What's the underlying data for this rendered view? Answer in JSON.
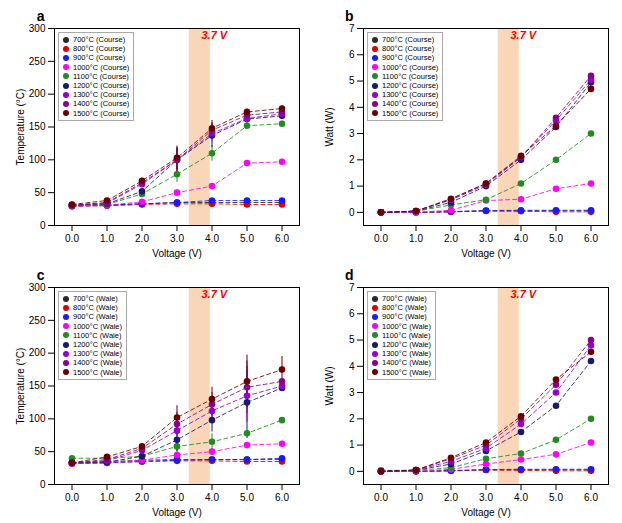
{
  "chart_data": [
    {
      "type": "line",
      "title": "a",
      "xlabel": "Voltage (V)",
      "ylabel": "Temperature (°C)",
      "x": [
        0,
        1,
        2,
        3,
        4,
        5,
        6
      ],
      "xlim": [
        -0.5,
        6.5
      ],
      "xticks": [
        0,
        1,
        2,
        3,
        4,
        5,
        6
      ],
      "ylim": [
        0,
        300
      ],
      "yticks": [
        0,
        50,
        100,
        150,
        200,
        250,
        300
      ],
      "grid": false,
      "legend": "upper left",
      "marker": "circle",
      "line_style": "dashed",
      "annotations": [
        {
          "text": "3.7 V",
          "color": "red"
        }
      ],
      "shade": {
        "x": [
          3.35,
          3.95
        ],
        "color": "#f4c090"
      },
      "series": [
        {
          "name": "700°C (Course)",
          "color": "#2a2a2a",
          "values": [
            30,
            31,
            33,
            35,
            35,
            35,
            35
          ],
          "errors": [
            1,
            1,
            1,
            1,
            1,
            1,
            1
          ]
        },
        {
          "name": "800°C (Course)",
          "color": "#e00000",
          "values": [
            29,
            30,
            32,
            33,
            33,
            32,
            32
          ],
          "errors": [
            1,
            1,
            1,
            1,
            1,
            1,
            1
          ]
        },
        {
          "name": "900°C (Course)",
          "color": "#1a1aff",
          "values": [
            30,
            31,
            33,
            35,
            38,
            38,
            38
          ],
          "errors": [
            1,
            1,
            1,
            1,
            1,
            1,
            1
          ]
        },
        {
          "name": "1000°C (Course)",
          "color": "#ff00ff",
          "values": [
            30,
            31,
            36,
            50,
            60,
            95,
            97
          ],
          "errors": [
            1,
            1,
            2,
            4,
            4,
            4,
            4
          ]
        },
        {
          "name": "1100°C (Course)",
          "color": "#228B22",
          "values": [
            30,
            32,
            48,
            78,
            110,
            152,
            155
          ],
          "errors": [
            1,
            1,
            4,
            12,
            12,
            4,
            4
          ]
        },
        {
          "name": "1200°C (Course)",
          "color": "#191970",
          "values": [
            31,
            33,
            52,
            100,
            137,
            162,
            167
          ],
          "errors": [
            1,
            1,
            4,
            18,
            18,
            4,
            4
          ]
        },
        {
          "name": "1300°C (Course)",
          "color": "#9400D3",
          "values": [
            31,
            34,
            63,
            100,
            140,
            163,
            170
          ],
          "errors": [
            1,
            1,
            4,
            18,
            12,
            4,
            4
          ]
        },
        {
          "name": "1400°C (Course)",
          "color": "#8B008B",
          "values": [
            31,
            35,
            65,
            100,
            145,
            168,
            173
          ],
          "errors": [
            1,
            1,
            4,
            18,
            12,
            4,
            4
          ]
        },
        {
          "name": "1500°C (Course)",
          "color": "#6B0000",
          "values": [
            32,
            38,
            68,
            103,
            148,
            173,
            178
          ],
          "errors": [
            1,
            1,
            4,
            18,
            12,
            4,
            4
          ]
        }
      ]
    },
    {
      "type": "line",
      "title": "b",
      "xlabel": "Voltage (V)",
      "ylabel": "Watt (W)",
      "x": [
        0,
        1,
        2,
        3,
        4,
        5,
        6
      ],
      "xlim": [
        -0.5,
        6.5
      ],
      "xticks": [
        0,
        1,
        2,
        3,
        4,
        5,
        6
      ],
      "ylim": [
        -0.5,
        7
      ],
      "yticks": [
        0,
        1,
        2,
        3,
        4,
        5,
        6,
        7
      ],
      "grid": false,
      "legend": "upper left",
      "marker": "circle",
      "line_style": "dashed",
      "annotations": [
        {
          "text": "3.7 V",
          "color": "red"
        }
      ],
      "shade": {
        "x": [
          3.35,
          3.95
        ],
        "color": "#f4c090"
      },
      "series": [
        {
          "name": "700°C (Course)",
          "color": "#2a2a2a",
          "values": [
            0,
            0,
            0.02,
            0.06,
            0.06,
            0.06,
            0.06
          ]
        },
        {
          "name": "800°C (Course)",
          "color": "#e00000",
          "values": [
            0,
            0,
            0.02,
            0.05,
            0.04,
            0.02,
            0.02
          ]
        },
        {
          "name": "900°C (Course)",
          "color": "#1a1aff",
          "values": [
            0,
            0,
            0.03,
            0.07,
            0.08,
            0.08,
            0.08
          ]
        },
        {
          "name": "1000°C (Course)",
          "color": "#ff00ff",
          "values": [
            0,
            0,
            0.08,
            0.45,
            0.5,
            0.9,
            1.1
          ]
        },
        {
          "name": "1100°C (Course)",
          "color": "#228B22",
          "values": [
            0,
            0.04,
            0.28,
            0.48,
            1.1,
            2.0,
            3.0
          ]
        },
        {
          "name": "1200°C (Course)",
          "color": "#191970",
          "values": [
            0,
            0.04,
            0.38,
            1.0,
            2.0,
            3.25,
            4.95
          ]
        },
        {
          "name": "1300°C (Course)",
          "color": "#9400D3",
          "values": [
            0,
            0.05,
            0.48,
            1.05,
            2.1,
            3.5,
            5.05
          ]
        },
        {
          "name": "1400°C (Course)",
          "color": "#8B008B",
          "values": [
            0,
            0.05,
            0.5,
            1.1,
            2.1,
            3.6,
            5.2
          ]
        },
        {
          "name": "1500°C (Course)",
          "color": "#6B0000",
          "values": [
            0,
            0.05,
            0.52,
            1.1,
            2.15,
            3.3,
            4.7
          ]
        }
      ]
    },
    {
      "type": "line",
      "title": "c",
      "xlabel": "Voltage (V)",
      "ylabel": "Temperature (°C)",
      "x": [
        0,
        1,
        2,
        3,
        4,
        5,
        6
      ],
      "xlim": [
        -0.5,
        6.5
      ],
      "xticks": [
        0,
        1,
        2,
        3,
        4,
        5,
        6
      ],
      "ylim": [
        0,
        300
      ],
      "yticks": [
        0,
        50,
        100,
        150,
        200,
        250,
        300
      ],
      "grid": false,
      "legend": "upper left",
      "marker": "circle",
      "line_style": "dashed",
      "annotations": [
        {
          "text": "3.7 V",
          "color": "red"
        }
      ],
      "shade": {
        "x": [
          3.35,
          3.95
        ],
        "color": "#f4c090"
      },
      "series": [
        {
          "name": "700°C (Wale)",
          "color": "#2a2a2a",
          "values": [
            33,
            35,
            37,
            38,
            38,
            38,
            38
          ],
          "errors": [
            1,
            1,
            1,
            1,
            1,
            1,
            1
          ]
        },
        {
          "name": "800°C (Wale)",
          "color": "#e00000",
          "values": [
            32,
            33,
            35,
            36,
            36,
            35,
            35
          ],
          "errors": [
            1,
            1,
            1,
            1,
            1,
            1,
            1
          ]
        },
        {
          "name": "900°C (Wale)",
          "color": "#1a1aff",
          "values": [
            32,
            33,
            35,
            37,
            38,
            38,
            40
          ],
          "errors": [
            1,
            1,
            1,
            1,
            1,
            1,
            1
          ]
        },
        {
          "name": "1000°C (Wale)",
          "color": "#ff00ff",
          "values": [
            32,
            33,
            37,
            45,
            50,
            60,
            62
          ],
          "errors": [
            1,
            1,
            2,
            4,
            4,
            4,
            4
          ]
        },
        {
          "name": "1100°C (Wale)",
          "color": "#228B22",
          "values": [
            40,
            40,
            43,
            58,
            65,
            78,
            98
          ],
          "errors": [
            1,
            1,
            4,
            12,
            12,
            4,
            4
          ]
        },
        {
          "name": "1200°C (Wale)",
          "color": "#191970",
          "values": [
            33,
            34,
            43,
            68,
            98,
            125,
            147
          ],
          "errors": [
            1,
            1,
            4,
            18,
            18,
            55,
            4
          ]
        },
        {
          "name": "1300°C (Wale)",
          "color": "#9400D3",
          "values": [
            33,
            36,
            52,
            82,
            112,
            135,
            150
          ],
          "errors": [
            1,
            1,
            4,
            18,
            18,
            40,
            4
          ]
        },
        {
          "name": "1400°C (Wale)",
          "color": "#8B008B",
          "values": [
            33,
            38,
            55,
            92,
            122,
            148,
            157
          ],
          "errors": [
            1,
            1,
            4,
            18,
            18,
            40,
            4
          ]
        },
        {
          "name": "1500°C (Wale)",
          "color": "#6B0000",
          "values": [
            33,
            42,
            58,
            102,
            130,
            157,
            175
          ],
          "errors": [
            1,
            1,
            4,
            18,
            18,
            40,
            20
          ]
        }
      ]
    },
    {
      "type": "line",
      "title": "d",
      "xlabel": "Voltage (V)",
      "ylabel": "Watt (W)",
      "x": [
        0,
        1,
        2,
        3,
        4,
        5,
        6
      ],
      "xlim": [
        -0.5,
        6.5
      ],
      "xticks": [
        0,
        1,
        2,
        3,
        4,
        5,
        6
      ],
      "ylim": [
        -0.5,
        7
      ],
      "yticks": [
        0,
        1,
        2,
        3,
        4,
        5,
        6,
        7
      ],
      "grid": false,
      "legend": "upper left",
      "marker": "circle",
      "line_style": "dashed",
      "annotations": [
        {
          "text": "3.7 V",
          "color": "red"
        }
      ],
      "shade": {
        "x": [
          3.35,
          3.95
        ],
        "color": "#f4c090"
      },
      "series": [
        {
          "name": "700°C (Wale)",
          "color": "#2a2a2a",
          "values": [
            0,
            0,
            0.02,
            0.06,
            0.06,
            0.06,
            0.06
          ]
        },
        {
          "name": "800°C (Wale)",
          "color": "#e00000",
          "values": [
            0,
            0,
            0.02,
            0.05,
            0.04,
            0.02,
            0.02
          ]
        },
        {
          "name": "900°C (Wale)",
          "color": "#1a1aff",
          "values": [
            0,
            0,
            0.03,
            0.07,
            0.08,
            0.08,
            0.08
          ]
        },
        {
          "name": "1000°C (Wale)",
          "color": "#ff00ff",
          "values": [
            0,
            0,
            0.08,
            0.28,
            0.45,
            0.65,
            1.1
          ]
        },
        {
          "name": "1100°C (Wale)",
          "color": "#228B22",
          "values": [
            0.04,
            0.04,
            0.14,
            0.48,
            0.68,
            1.2,
            2.0
          ]
        },
        {
          "name": "1200°C (Wale)",
          "color": "#191970",
          "values": [
            0,
            0.04,
            0.28,
            0.78,
            1.5,
            2.5,
            4.2
          ]
        },
        {
          "name": "1300°C (Wale)",
          "color": "#9400D3",
          "values": [
            0,
            0.05,
            0.38,
            0.88,
            1.8,
            3.0,
            4.8
          ]
        },
        {
          "name": "1400°C (Wale)",
          "color": "#8B008B",
          "values": [
            0,
            0.05,
            0.48,
            1.0,
            2.0,
            3.3,
            5.0
          ]
        },
        {
          "name": "1500°C (Wale)",
          "color": "#6B0000",
          "values": [
            0,
            0.05,
            0.52,
            1.1,
            2.1,
            3.5,
            4.55
          ]
        }
      ]
    }
  ]
}
